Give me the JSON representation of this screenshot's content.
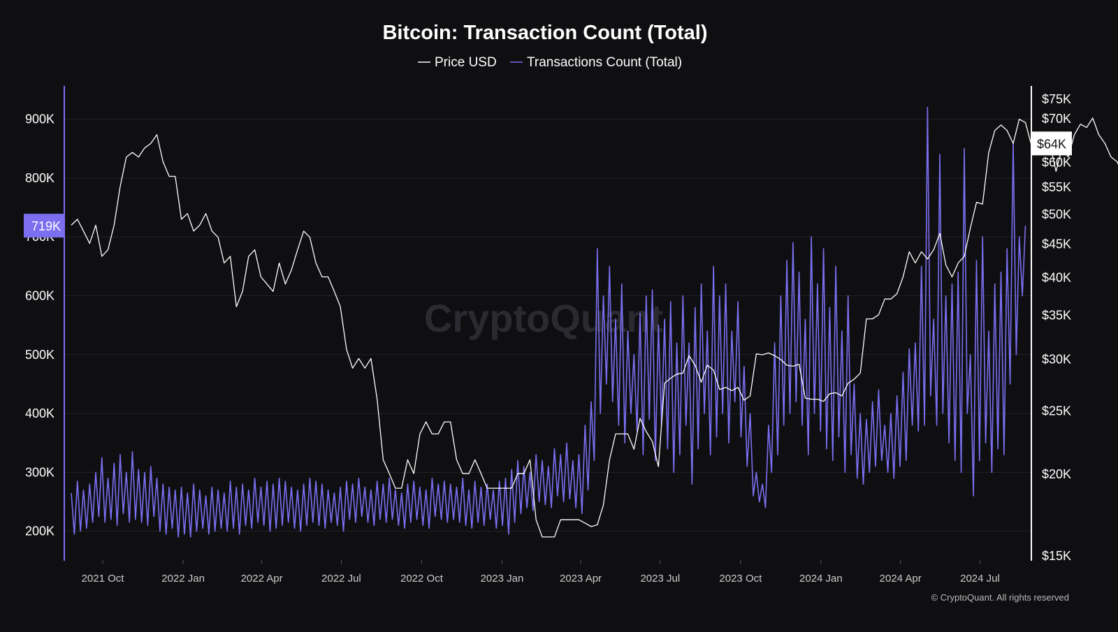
{
  "chart_data": {
    "type": "line",
    "title": "Bitcoin: Transaction Count (Total)",
    "legend": {
      "placement": "top-center",
      "entries": [
        "Price USD",
        "Transactions Count (Total)"
      ]
    },
    "x_ticks": [
      {
        "label": "2021 Oct",
        "date": "2021-10-01"
      },
      {
        "label": "2022 Jan",
        "date": "2022-01-01"
      },
      {
        "label": "2022 Apr",
        "date": "2022-04-01"
      },
      {
        "label": "2022 Jul",
        "date": "2022-07-01"
      },
      {
        "label": "2022 Oct",
        "date": "2022-10-01"
      },
      {
        "label": "2023 Jan",
        "date": "2023-01-01"
      },
      {
        "label": "2023 Apr",
        "date": "2023-04-01"
      },
      {
        "label": "2023 Jul",
        "date": "2023-07-01"
      },
      {
        "label": "2023 Oct",
        "date": "2023-10-01"
      },
      {
        "label": "2024 Jan",
        "date": "2024-01-01"
      },
      {
        "label": "2024 Apr",
        "date": "2024-04-01"
      },
      {
        "label": "2024 Jul",
        "date": "2024-07-01"
      }
    ],
    "xlim": [
      "2021-08-18",
      "2024-08-28"
    ],
    "y_left": {
      "scale": "linear",
      "ylim": [
        151,
        954
      ],
      "ticks": [
        {
          "v": 200,
          "label": "200K"
        },
        {
          "v": 300,
          "label": "300K"
        },
        {
          "v": 400,
          "label": "400K"
        },
        {
          "v": 500,
          "label": "500K"
        },
        {
          "v": 600,
          "label": "600K"
        },
        {
          "v": 700,
          "label": "700K"
        },
        {
          "v": 800,
          "label": "800K"
        },
        {
          "v": 900,
          "label": "900K"
        }
      ],
      "current_label": "719K"
    },
    "y_right": {
      "scale": "log",
      "ylim": [
        14.75,
        78
      ],
      "ticks": [
        {
          "v": 15,
          "label": "$15K"
        },
        {
          "v": 20,
          "label": "$20K"
        },
        {
          "v": 25,
          "label": "$25K"
        },
        {
          "v": 30,
          "label": "$30K"
        },
        {
          "v": 35,
          "label": "$35K"
        },
        {
          "v": 40,
          "label": "$40K"
        },
        {
          "v": 45,
          "label": "$45K"
        },
        {
          "v": 50,
          "label": "$50K"
        },
        {
          "v": 55,
          "label": "$55K"
        },
        {
          "v": 60,
          "label": "$60K"
        },
        {
          "v": 70,
          "label": "$70K"
        },
        {
          "v": 75,
          "label": "$75K"
        }
      ],
      "current_label": "$64K"
    },
    "grid": true,
    "series": [
      {
        "name": "Price USD",
        "axis": "right",
        "color": "#ffffff",
        "start": "2021-08-26",
        "step_days": 7,
        "values": [
          48,
          49,
          47,
          45,
          48,
          43,
          44,
          48,
          55,
          61,
          62,
          61,
          63,
          64,
          66,
          60,
          57,
          57,
          49,
          50,
          47,
          48,
          50,
          47,
          46,
          42,
          43,
          36,
          38,
          43,
          44,
          40,
          39,
          38,
          42,
          39,
          41,
          44,
          47,
          46,
          42,
          40,
          40,
          38,
          36,
          31,
          29,
          30,
          29,
          30,
          26,
          21,
          20,
          19,
          19,
          21,
          20,
          23,
          24,
          23,
          23,
          24,
          24,
          21,
          20,
          20,
          21,
          20,
          19,
          19,
          19,
          19,
          19,
          20,
          20,
          21,
          17,
          16,
          16,
          16,
          17,
          17,
          17,
          17,
          16.8,
          16.6,
          16.7,
          17.9,
          21,
          23,
          23,
          23,
          21.8,
          24.3,
          23.2,
          22.4,
          20.5,
          27.5,
          28,
          28.4,
          28.5,
          30.3,
          29.3,
          27.6,
          29.3,
          28.8,
          26.9,
          27.1,
          26.8,
          27.1,
          25.9,
          26.3,
          30.5,
          30.4,
          30.6,
          30.3,
          29.9,
          29.3,
          29.2,
          29.4,
          26.1,
          26,
          26,
          25.8,
          26.5,
          26.6,
          26.3,
          27.5,
          27.9,
          28.5,
          34.5,
          34.5,
          35,
          37,
          37,
          37.7,
          40,
          43.7,
          42,
          43.7,
          42.6,
          44,
          46.6,
          41.7,
          40,
          42,
          43,
          47.5,
          52,
          51.7,
          62,
          67,
          68.3,
          67,
          64,
          69.7,
          68.9,
          63.5,
          64.3,
          63,
          64,
          58,
          63,
          61,
          66,
          68.5,
          67.7,
          70,
          66,
          64,
          61,
          60,
          57,
          61,
          64,
          68,
          66,
          61,
          58,
          59,
          63
        ]
      },
      {
        "name": "Transactions Count (Total)",
        "axis": "left",
        "color": "#7b6ff0",
        "start": "2021-08-26",
        "step_days": 3.5,
        "values": [
          265,
          195,
          285,
          200,
          270,
          205,
          280,
          215,
          300,
          225,
          325,
          215,
          290,
          220,
          315,
          210,
          330,
          230,
          300,
          215,
          335,
          220,
          305,
          215,
          300,
          210,
          310,
          225,
          290,
          200,
          280,
          195,
          275,
          205,
          270,
          190,
          275,
          195,
          265,
          190,
          280,
          200,
          270,
          205,
          260,
          195,
          275,
          200,
          270,
          205,
          265,
          200,
          285,
          205,
          275,
          195,
          280,
          210,
          270,
          205,
          290,
          215,
          275,
          210,
          285,
          200,
          280,
          205,
          290,
          210,
          285,
          215,
          275,
          205,
          270,
          200,
          280,
          210,
          290,
          215,
          285,
          210,
          280,
          205,
          270,
          215,
          265,
          210,
          275,
          200,
          285,
          220,
          280,
          215,
          290,
          225,
          275,
          215,
          270,
          210,
          285,
          220,
          280,
          215,
          290,
          220,
          270,
          210,
          265,
          205,
          280,
          215,
          285,
          220,
          275,
          210,
          270,
          205,
          290,
          225,
          280,
          220,
          285,
          215,
          280,
          220,
          275,
          215,
          290,
          210,
          270,
          205,
          285,
          215,
          275,
          210,
          280,
          220,
          270,
          205,
          285,
          210,
          290,
          195,
          305,
          215,
          320,
          230,
          310,
          240,
          300,
          235,
          330,
          250,
          320,
          245,
          310,
          240,
          340,
          260,
          330,
          250,
          350,
          255,
          320,
          240,
          330,
          230,
          380,
          270,
          420,
          320,
          680,
          400,
          600,
          450,
          650,
          420,
          560,
          380,
          620,
          350,
          540,
          400,
          500,
          370,
          570,
          330,
          600,
          390,
          610,
          320,
          550,
          380,
          560,
          340,
          590,
          300,
          520,
          330,
          600,
          380,
          520,
          280,
          580,
          340,
          620,
          400,
          540,
          330,
          650,
          360,
          600,
          400,
          620,
          350,
          540,
          420,
          590,
          360,
          480,
          310,
          400,
          260,
          300,
          250,
          280,
          240,
          380,
          300,
          520,
          330,
          600,
          380,
          660,
          400,
          690,
          420,
          640,
          380,
          560,
          330,
          700,
          400,
          620,
          370,
          680,
          340,
          580,
          320,
          650,
          360,
          540,
          300,
          600,
          330,
          450,
          290,
          400,
          280,
          390,
          300,
          420,
          310,
          440,
          320,
          380,
          300,
          400,
          290,
          430,
          310,
          470,
          320,
          510,
          380,
          520,
          370,
          650,
          380,
          920,
          430,
          560,
          380,
          840,
          400,
          600,
          350,
          620,
          320,
          640,
          300,
          850,
          400,
          500,
          260,
          660,
          320,
          700,
          350,
          540,
          300,
          620,
          340,
          640,
          330,
          680,
          450,
          860,
          500,
          700,
          600,
          719
        ]
      }
    ]
  },
  "watermark": "CryptoQuant",
  "footer": "© CryptoQuant. All rights reserved"
}
